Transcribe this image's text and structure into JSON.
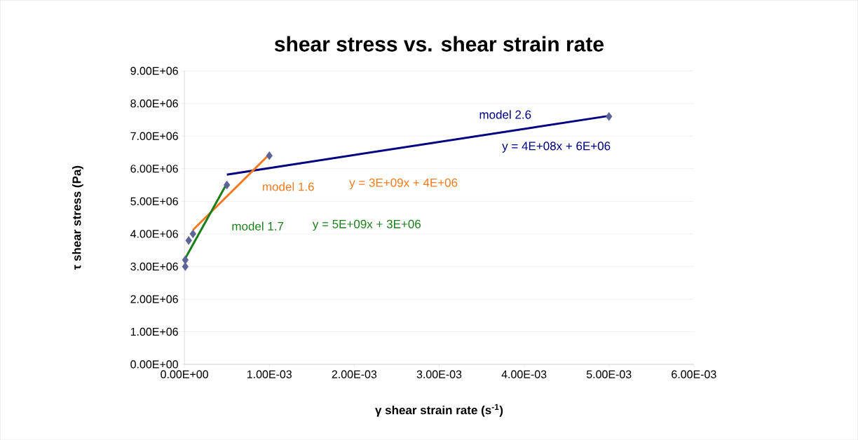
{
  "chart_data": {
    "type": "scatter",
    "title": "shear stress vs. shear strain rate",
    "xlabel": "γ  shear strain rate (s$^{-1}$)",
    "ylabel": "τ shear stress (Pa)",
    "xlim": [
      0,
      0.006
    ],
    "ylim": [
      0,
      9000000
    ],
    "xticks": [
      {
        "value": 0,
        "label": "0.00E+00"
      },
      {
        "value": 0.001,
        "label": "1.00E-03"
      },
      {
        "value": 0.002,
        "label": "2.00E-03"
      },
      {
        "value": 0.003,
        "label": "3.00E-03"
      },
      {
        "value": 0.004,
        "label": "4.00E-03"
      },
      {
        "value": 0.005,
        "label": "5.00E-03"
      },
      {
        "value": 0.006,
        "label": "6.00E-03"
      }
    ],
    "yticks": [
      {
        "value": 0,
        "label": "0.00E+00"
      },
      {
        "value": 1000000,
        "label": "1.00E+06"
      },
      {
        "value": 2000000,
        "label": "2.00E+06"
      },
      {
        "value": 3000000,
        "label": "3.00E+06"
      },
      {
        "value": 4000000,
        "label": "4.00E+06"
      },
      {
        "value": 5000000,
        "label": "5.00E+06"
      },
      {
        "value": 6000000,
        "label": "6.00E+06"
      },
      {
        "value": 7000000,
        "label": "7.00E+06"
      },
      {
        "value": 8000000,
        "label": "8.00E+06"
      },
      {
        "value": 9000000,
        "label": "9.00E+06"
      }
    ],
    "grid": "y",
    "marker": "diamond",
    "series": [
      {
        "color": "#5c6496",
        "x": [
          1e-05,
          1e-05,
          5e-05,
          0.0001,
          0.0005,
          0.001,
          0.005
        ],
        "values": [
          3000000,
          3200000,
          3800000,
          4000000,
          5500000,
          6400000,
          7600000
        ]
      },
      {
        "type": "line",
        "name": "model 2.6",
        "color": "#000080",
        "marker": "none",
        "x": [
          0.0005,
          0.005
        ],
        "values": [
          5820000,
          7620000
        ]
      },
      {
        "type": "line",
        "name": "model 1.6",
        "color": "#f47a20",
        "marker": "none",
        "x": [
          0.0001,
          0.001
        ],
        "values": [
          4120000,
          6440000
        ]
      },
      {
        "type": "line",
        "name": "model 1.7",
        "color": "#1a7f1a",
        "marker": "none",
        "x": [
          1e-05,
          0.0005
        ],
        "values": [
          3250000,
          5550000
        ]
      }
    ],
    "annotations": [
      "y = 4E+08x + 6E+06",
      "y = 3E+09x + 4E+06",
      "y = 5E+09x + 3E+06"
    ]
  }
}
